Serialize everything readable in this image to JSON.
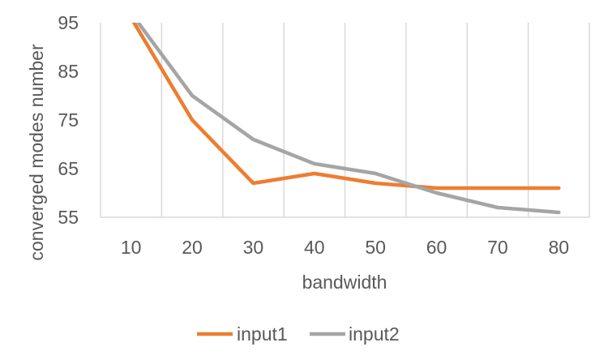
{
  "chart_data": {
    "type": "line",
    "categories": [
      "10",
      "20",
      "30",
      "40",
      "50",
      "60",
      "70",
      "80"
    ],
    "x": [
      10,
      20,
      30,
      40,
      50,
      60,
      70,
      80
    ],
    "xlabel": "bandwidth",
    "ylabel": "converged modes number",
    "ylim": [
      55,
      95
    ],
    "yticks": [
      55,
      65,
      75,
      85,
      95
    ],
    "grid": "vertical",
    "legend": "bottom",
    "series": [
      {
        "name": "input1",
        "color": "#ED7D31",
        "values": [
          96,
          75,
          62,
          64,
          62,
          61,
          61,
          61
        ]
      },
      {
        "name": "input2",
        "color": "#A5A5A5",
        "values": [
          97,
          80,
          71,
          66,
          64,
          60,
          57,
          56
        ]
      }
    ]
  }
}
